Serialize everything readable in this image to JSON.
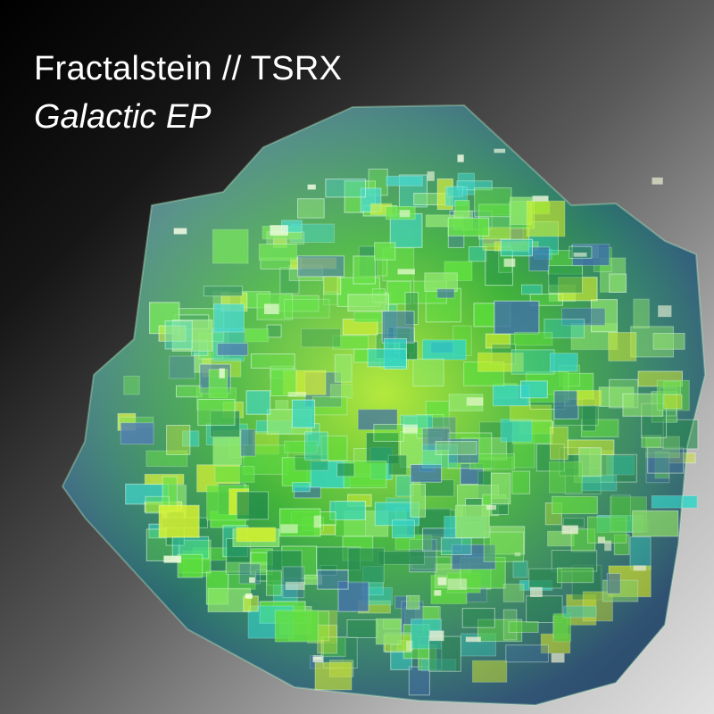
{
  "cover": {
    "artist": "Fractalstein // TSRX",
    "release_title": "Galactic EP",
    "artwork_icon": "glass-cube-fractal-icon",
    "colors": {
      "text": "#ffffff",
      "glass_green": "#5ce03a",
      "glass_yellow": "#d8f22a",
      "glass_cyan": "#2fd4c8",
      "glass_blue": "#3c6ea8",
      "background_dark": "#000000",
      "background_light": "#e2e2e2"
    }
  }
}
